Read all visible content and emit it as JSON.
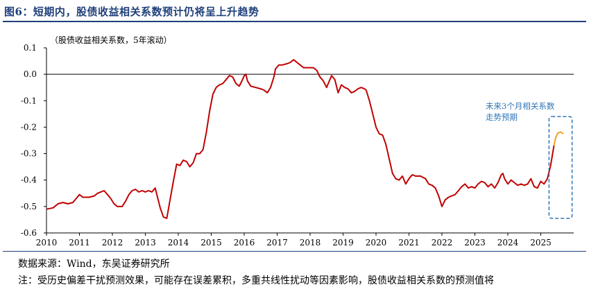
{
  "figure_title": "图6：短期内，股债收益相关系数预计仍将呈上升趋势",
  "source_text": "数据来源：Wind，东吴证券研究所",
  "note_text": "注：受历史偏差干扰预测效果，可能存在误差累积，多重共线性扰动等因素影响，股债收益相关系数的预测值将",
  "chart_data": {
    "type": "line",
    "title": "（股债收益相关系数，5年滚动）",
    "xlabel": "",
    "ylabel": "",
    "xlim": [
      2010,
      2026
    ],
    "ylim": [
      -0.6,
      0.1
    ],
    "xticks": [
      "2010",
      "2011",
      "2012",
      "2013",
      "2014",
      "2015",
      "2016",
      "2017",
      "2018",
      "2019",
      "2020",
      "2021",
      "2022",
      "2023",
      "2024",
      "2025"
    ],
    "yticks": [
      "0.1",
      "0.0",
      "-0.1",
      "-0.2",
      "-0.3",
      "-0.4",
      "-0.5",
      "-0.6"
    ],
    "series": [
      {
        "name": "",
        "color": "#c00000",
        "points": [
          [
            2010.0,
            -0.51
          ],
          [
            2010.2,
            -0.505
          ],
          [
            2010.35,
            -0.49
          ],
          [
            2010.5,
            -0.485
          ],
          [
            2010.65,
            -0.49
          ],
          [
            2010.8,
            -0.485
          ],
          [
            2010.9,
            -0.47
          ],
          [
            2011.0,
            -0.455
          ],
          [
            2011.1,
            -0.465
          ],
          [
            2011.3,
            -0.465
          ],
          [
            2011.45,
            -0.46
          ],
          [
            2011.55,
            -0.45
          ],
          [
            2011.65,
            -0.445
          ],
          [
            2011.75,
            -0.44
          ],
          [
            2011.85,
            -0.455
          ],
          [
            2011.95,
            -0.47
          ],
          [
            2012.05,
            -0.49
          ],
          [
            2012.15,
            -0.5
          ],
          [
            2012.3,
            -0.5
          ],
          [
            2012.4,
            -0.48
          ],
          [
            2012.5,
            -0.455
          ],
          [
            2012.6,
            -0.44
          ],
          [
            2012.7,
            -0.435
          ],
          [
            2012.8,
            -0.445
          ],
          [
            2012.9,
            -0.44
          ],
          [
            2013.0,
            -0.445
          ],
          [
            2013.1,
            -0.44
          ],
          [
            2013.2,
            -0.445
          ],
          [
            2013.3,
            -0.43
          ],
          [
            2013.35,
            -0.455
          ],
          [
            2013.45,
            -0.505
          ],
          [
            2013.55,
            -0.54
          ],
          [
            2013.65,
            -0.545
          ],
          [
            2013.75,
            -0.475
          ],
          [
            2013.85,
            -0.405
          ],
          [
            2013.95,
            -0.34
          ],
          [
            2014.05,
            -0.345
          ],
          [
            2014.15,
            -0.325
          ],
          [
            2014.25,
            -0.33
          ],
          [
            2014.35,
            -0.35
          ],
          [
            2014.45,
            -0.335
          ],
          [
            2014.55,
            -0.3
          ],
          [
            2014.65,
            -0.3
          ],
          [
            2014.75,
            -0.285
          ],
          [
            2014.85,
            -0.22
          ],
          [
            2014.95,
            -0.14
          ],
          [
            2015.05,
            -0.075
          ],
          [
            2015.15,
            -0.05
          ],
          [
            2015.25,
            -0.04
          ],
          [
            2015.35,
            -0.035
          ],
          [
            2015.45,
            -0.02
          ],
          [
            2015.55,
            -0.005
          ],
          [
            2015.65,
            -0.01
          ],
          [
            2015.75,
            -0.035
          ],
          [
            2015.85,
            -0.045
          ],
          [
            2015.95,
            -0.02
          ],
          [
            2016.0,
            -0.005
          ],
          [
            2016.05,
            0.0
          ],
          [
            2016.1,
            -0.025
          ],
          [
            2016.2,
            -0.045
          ],
          [
            2016.35,
            -0.05
          ],
          [
            2016.5,
            -0.055
          ],
          [
            2016.6,
            -0.06
          ],
          [
            2016.7,
            -0.07
          ],
          [
            2016.8,
            -0.05
          ],
          [
            2016.9,
            -0.01
          ],
          [
            2016.95,
            0.02
          ],
          [
            2017.05,
            0.035
          ],
          [
            2017.15,
            0.035
          ],
          [
            2017.3,
            0.04
          ],
          [
            2017.4,
            0.045
          ],
          [
            2017.5,
            0.055
          ],
          [
            2017.6,
            0.045
          ],
          [
            2017.7,
            0.035
          ],
          [
            2017.8,
            0.025
          ],
          [
            2017.9,
            0.025
          ],
          [
            2018.0,
            0.025
          ],
          [
            2018.1,
            0.025
          ],
          [
            2018.2,
            0.015
          ],
          [
            2018.3,
            -0.01
          ],
          [
            2018.4,
            -0.025
          ],
          [
            2018.5,
            -0.05
          ],
          [
            2018.55,
            -0.035
          ],
          [
            2018.65,
            -0.005
          ],
          [
            2018.75,
            -0.02
          ],
          [
            2018.85,
            -0.07
          ],
          [
            2018.95,
            -0.04
          ],
          [
            2019.05,
            -0.05
          ],
          [
            2019.15,
            -0.055
          ],
          [
            2019.25,
            -0.07
          ],
          [
            2019.35,
            -0.065
          ],
          [
            2019.45,
            -0.055
          ],
          [
            2019.55,
            -0.05
          ],
          [
            2019.65,
            -0.055
          ],
          [
            2019.7,
            -0.06
          ],
          [
            2019.8,
            -0.1
          ],
          [
            2019.9,
            -0.15
          ],
          [
            2020.0,
            -0.2
          ],
          [
            2020.1,
            -0.225
          ],
          [
            2020.2,
            -0.23
          ],
          [
            2020.3,
            -0.265
          ],
          [
            2020.4,
            -0.32
          ],
          [
            2020.5,
            -0.375
          ],
          [
            2020.6,
            -0.395
          ],
          [
            2020.7,
            -0.4
          ],
          [
            2020.8,
            -0.385
          ],
          [
            2020.9,
            -0.415
          ],
          [
            2021.0,
            -0.395
          ],
          [
            2021.1,
            -0.38
          ],
          [
            2021.2,
            -0.385
          ],
          [
            2021.35,
            -0.385
          ],
          [
            2021.5,
            -0.395
          ],
          [
            2021.6,
            -0.415
          ],
          [
            2021.7,
            -0.42
          ],
          [
            2021.8,
            -0.43
          ],
          [
            2021.9,
            -0.46
          ],
          [
            2022.0,
            -0.5
          ],
          [
            2022.1,
            -0.475
          ],
          [
            2022.2,
            -0.465
          ],
          [
            2022.3,
            -0.46
          ],
          [
            2022.4,
            -0.455
          ],
          [
            2022.5,
            -0.44
          ],
          [
            2022.6,
            -0.425
          ],
          [
            2022.7,
            -0.415
          ],
          [
            2022.8,
            -0.43
          ],
          [
            2022.9,
            -0.425
          ],
          [
            2023.0,
            -0.43
          ],
          [
            2023.1,
            -0.415
          ],
          [
            2023.2,
            -0.405
          ],
          [
            2023.3,
            -0.41
          ],
          [
            2023.4,
            -0.425
          ],
          [
            2023.5,
            -0.415
          ],
          [
            2023.6,
            -0.43
          ],
          [
            2023.7,
            -0.41
          ],
          [
            2023.8,
            -0.38
          ],
          [
            2023.85,
            -0.375
          ],
          [
            2023.9,
            -0.395
          ],
          [
            2024.0,
            -0.415
          ],
          [
            2024.1,
            -0.4
          ],
          [
            2024.2,
            -0.41
          ],
          [
            2024.3,
            -0.42
          ],
          [
            2024.4,
            -0.415
          ],
          [
            2024.5,
            -0.42
          ],
          [
            2024.6,
            -0.415
          ],
          [
            2024.7,
            -0.395
          ],
          [
            2024.8,
            -0.425
          ],
          [
            2024.9,
            -0.43
          ],
          [
            2025.0,
            -0.405
          ],
          [
            2025.1,
            -0.415
          ],
          [
            2025.2,
            -0.395
          ],
          [
            2025.3,
            -0.345
          ],
          [
            2025.4,
            -0.27
          ]
        ]
      },
      {
        "name": "",
        "color": "#f0a020",
        "points": [
          [
            2025.4,
            -0.27
          ],
          [
            2025.45,
            -0.24
          ],
          [
            2025.52,
            -0.222
          ],
          [
            2025.6,
            -0.218
          ],
          [
            2025.68,
            -0.225
          ]
        ]
      }
    ],
    "annotation": {
      "lines": [
        "未来3个月相关系数",
        "走势预期"
      ],
      "color": "#2e75b6",
      "box_x_range": [
        2025.25,
        2025.95
      ],
      "box_y_range": [
        -0.545,
        -0.16
      ]
    }
  }
}
